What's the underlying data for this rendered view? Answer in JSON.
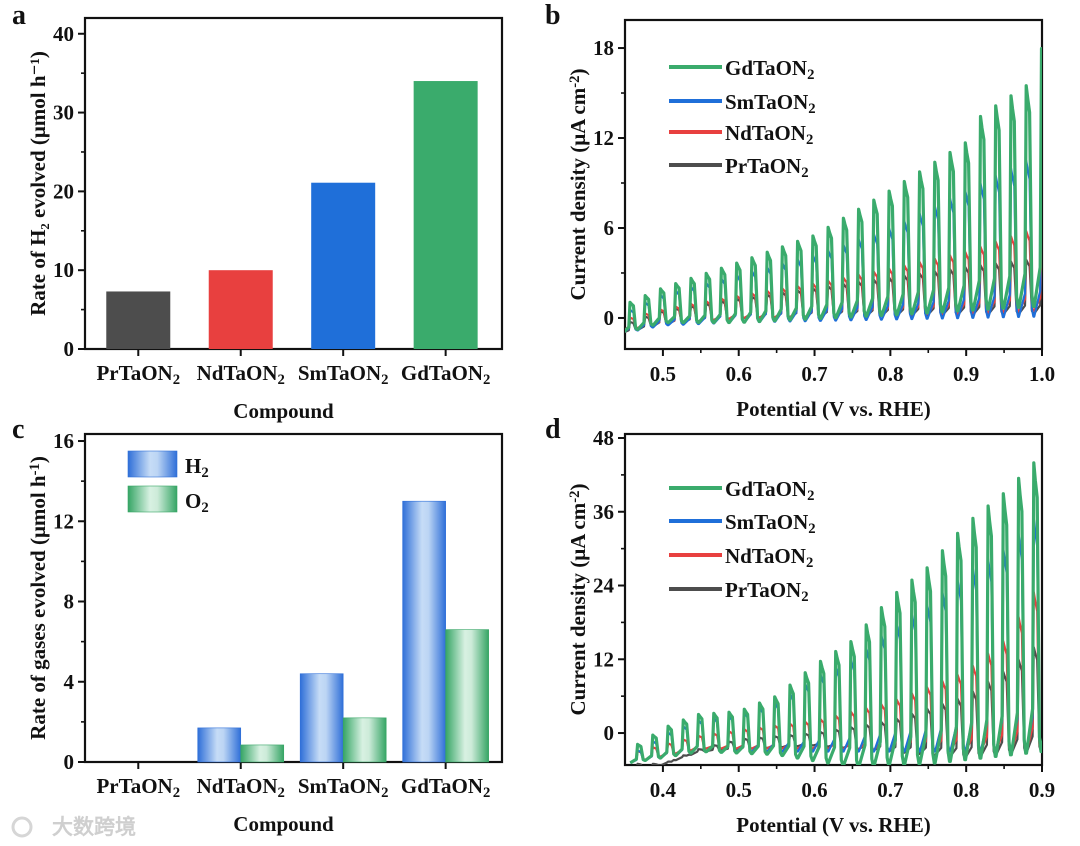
{
  "panel_letters": [
    "a",
    "b",
    "c",
    "d"
  ],
  "watermark": "大数跨境",
  "colors": {
    "PrTaON2": "#4d4d4d",
    "NdTaON2": "#e8403f",
    "SmTaON2": "#1f6fd9",
    "GdTaON2": "#3aab6c"
  },
  "chart_data": [
    {
      "id": "a",
      "type": "bar",
      "categories": [
        "PrTaON₂",
        "NdTaON₂",
        "SmTaON₂",
        "GdTaON₂"
      ],
      "values": [
        7.3,
        10.0,
        21.1,
        34.0
      ],
      "bar_colors": [
        "#4d4d4d",
        "#e8403f",
        "#1f6fd9",
        "#3aab6c"
      ],
      "xlabel": "Compound",
      "ylabel": "Rate of H₂ evolved (μmol h⁻¹)",
      "ylim": [
        0,
        42
      ],
      "yticks": [
        0,
        10,
        20,
        30,
        40
      ],
      "ytick_labels": [
        "0",
        "10",
        "20",
        "30",
        "40"
      ]
    },
    {
      "id": "b",
      "type": "line",
      "xlabel": "Potential (V vs. RHE)",
      "ylabel": "Current density (μA cm⁻²)",
      "xlim": [
        0.45,
        1.0
      ],
      "ylim": [
        -2.07,
        19.87
      ],
      "xticks": [
        0.5,
        0.6,
        0.7,
        0.8,
        0.9,
        1.0
      ],
      "xtick_labels": [
        "0.5",
        "0.6",
        "0.7",
        "0.8",
        "0.9",
        "1.0"
      ],
      "yticks": [
        0,
        6,
        12,
        18
      ],
      "ytick_labels": [
        "0",
        "6",
        "12",
        "18"
      ],
      "chop_period": 0.0201,
      "chop_start": 0.457,
      "legend": "top-left",
      "series": [
        {
          "name": "GdTaON₂",
          "key": "GdTaON2",
          "light_peaks": [
            [
              0.455,
              1
            ],
            [
              0.5,
              2
            ],
            [
              0.6,
              3.7
            ],
            [
              0.7,
              5.5
            ],
            [
              0.8,
              8.5
            ],
            [
              0.9,
              11.7
            ],
            [
              0.92,
              13.5
            ],
            [
              0.98,
              15.5
            ],
            [
              1.0,
              18
            ]
          ],
          "dark": [
            [
              0.45,
              -1
            ],
            [
              0.5,
              -0.3
            ],
            [
              0.6,
              -0.3
            ],
            [
              0.8,
              0.2
            ],
            [
              1.0,
              0.8
            ]
          ]
        },
        {
          "name": "SmTaON₂",
          "key": "SmTaON2",
          "light_peaks": [
            [
              0.455,
              0.5
            ],
            [
              0.5,
              1.6
            ],
            [
              0.6,
              2.9
            ],
            [
              0.7,
              4.2
            ],
            [
              0.8,
              6
            ],
            [
              0.9,
              8.5
            ],
            [
              0.98,
              10.5
            ],
            [
              1.0,
              11.5
            ]
          ],
          "dark": [
            [
              0.45,
              -1
            ],
            [
              0.5,
              -0.5
            ],
            [
              0.6,
              -0.3
            ],
            [
              0.8,
              -0.1
            ],
            [
              1.0,
              0.1
            ]
          ]
        },
        {
          "name": "NdTaON₂",
          "key": "NdTaON2",
          "light_peaks": [
            [
              0.455,
              0
            ],
            [
              0.5,
              0.6
            ],
            [
              0.6,
              1.5
            ],
            [
              0.7,
              2.3
            ],
            [
              0.8,
              3.3
            ],
            [
              0.9,
              4.4
            ],
            [
              0.98,
              5.8
            ],
            [
              1.0,
              6
            ]
          ],
          "dark": [
            [
              0.45,
              -0.8
            ],
            [
              0.5,
              -0.4
            ],
            [
              0.6,
              0
            ],
            [
              0.9,
              0.3
            ],
            [
              1.0,
              0.5
            ]
          ]
        },
        {
          "name": "PrTaON₂",
          "key": "PrTaON2",
          "light_peaks": [
            [
              0.455,
              -0.3
            ],
            [
              0.5,
              0.5
            ],
            [
              0.6,
              1.3
            ],
            [
              0.7,
              2
            ],
            [
              0.8,
              2.7
            ],
            [
              0.9,
              3.4
            ],
            [
              1.0,
              4
            ]
          ],
          "dark": [
            [
              0.45,
              -1
            ],
            [
              0.5,
              -0.4
            ],
            [
              0.6,
              0
            ],
            [
              1.0,
              0.3
            ]
          ]
        }
      ]
    },
    {
      "id": "c",
      "type": "bar",
      "categories": [
        "PrTaON₂",
        "NdTaON₂",
        "SmTaON₂",
        "GdTaON₂"
      ],
      "series": [
        {
          "name": "H₂",
          "values": [
            0,
            1.7,
            4.4,
            13.0
          ],
          "color": "#2f6fd8",
          "highlight": "#c6dcf6"
        },
        {
          "name": "O₂",
          "values": [
            0,
            0.85,
            2.2,
            6.6
          ],
          "color": "#36a565",
          "highlight": "#d8f1e2"
        }
      ],
      "xlabel": "Compound",
      "ylabel": "Rate of gases evolved (μmol h⁻¹)",
      "ylim": [
        0,
        16.35
      ],
      "yticks": [
        0,
        4,
        8,
        12,
        16
      ],
      "ytick_labels": [
        "0",
        "4",
        "8",
        "12",
        "16"
      ],
      "legend": "top-left"
    },
    {
      "id": "d",
      "type": "line",
      "xlabel": "Potential (V vs. RHE)",
      "ylabel": "Current density (μA cm⁻²)",
      "xlim": [
        0.35,
        0.9
      ],
      "ylim": [
        -5.2,
        48.65
      ],
      "xticks": [
        0.4,
        0.5,
        0.6,
        0.7,
        0.8,
        0.9
      ],
      "xtick_labels": [
        "0.4",
        "0.5",
        "0.6",
        "0.7",
        "0.8",
        "0.9"
      ],
      "yticks": [
        0,
        12,
        24,
        36,
        48
      ],
      "ytick_labels": [
        "0",
        "12",
        "24",
        "36",
        "48"
      ],
      "chop_period": 0.0201,
      "chop_start": 0.367,
      "legend": "top-left",
      "series": [
        {
          "name": "GdTaON₂",
          "key": "GdTaON2",
          "light_peaks": [
            [
              0.365,
              -2
            ],
            [
              0.405,
              1
            ],
            [
              0.445,
              3
            ],
            [
              0.5,
              3.5
            ],
            [
              0.55,
              6
            ],
            [
              0.6,
              11
            ],
            [
              0.65,
              15
            ],
            [
              0.7,
              22
            ],
            [
              0.75,
              27
            ],
            [
              0.8,
              34
            ],
            [
              0.85,
              39
            ],
            [
              0.89,
              44
            ]
          ],
          "dark": [
            [
              0.35,
              -5
            ],
            [
              0.45,
              -3
            ],
            [
              0.55,
              -3.5
            ],
            [
              0.65,
              -5.5
            ],
            [
              0.75,
              -5
            ],
            [
              0.9,
              -3
            ]
          ]
        },
        {
          "name": "SmTaON₂",
          "key": "SmTaON2",
          "light_peaks": [
            [
              0.365,
              -3
            ],
            [
              0.405,
              0
            ],
            [
              0.445,
              2
            ],
            [
              0.5,
              3
            ],
            [
              0.55,
              5
            ],
            [
              0.6,
              9
            ],
            [
              0.65,
              12
            ],
            [
              0.7,
              17
            ],
            [
              0.75,
              21
            ],
            [
              0.8,
              26
            ],
            [
              0.85,
              30
            ],
            [
              0.89,
              35
            ]
          ],
          "dark": [
            [
              0.35,
              -5
            ],
            [
              0.45,
              -3
            ],
            [
              0.6,
              -3
            ],
            [
              0.9,
              -3
            ]
          ]
        },
        {
          "name": "NdTaON₂",
          "key": "NdTaON2",
          "light_peaks": [
            [
              0.365,
              -3
            ],
            [
              0.445,
              -0.5
            ],
            [
              0.5,
              0.5
            ],
            [
              0.6,
              2
            ],
            [
              0.7,
              5
            ],
            [
              0.8,
              10
            ],
            [
              0.85,
              15
            ],
            [
              0.89,
              23
            ]
          ],
          "dark": [
            [
              0.35,
              -5
            ],
            [
              0.45,
              -2.5
            ],
            [
              0.6,
              -2.5
            ],
            [
              0.8,
              -3
            ],
            [
              0.9,
              -3
            ]
          ]
        },
        {
          "name": "PrTaON₂",
          "key": "PrTaON2",
          "light_peaks": [
            [
              0.4,
              -5
            ],
            [
              0.45,
              -2.5
            ],
            [
              0.5,
              -1
            ],
            [
              0.6,
              0
            ],
            [
              0.7,
              2
            ],
            [
              0.8,
              6
            ],
            [
              0.85,
              10
            ],
            [
              0.89,
              14
            ]
          ],
          "dark": [
            [
              0.38,
              -6
            ],
            [
              0.45,
              -3
            ],
            [
              0.6,
              -2
            ],
            [
              0.8,
              -4
            ],
            [
              0.9,
              -3
            ]
          ]
        }
      ]
    }
  ]
}
